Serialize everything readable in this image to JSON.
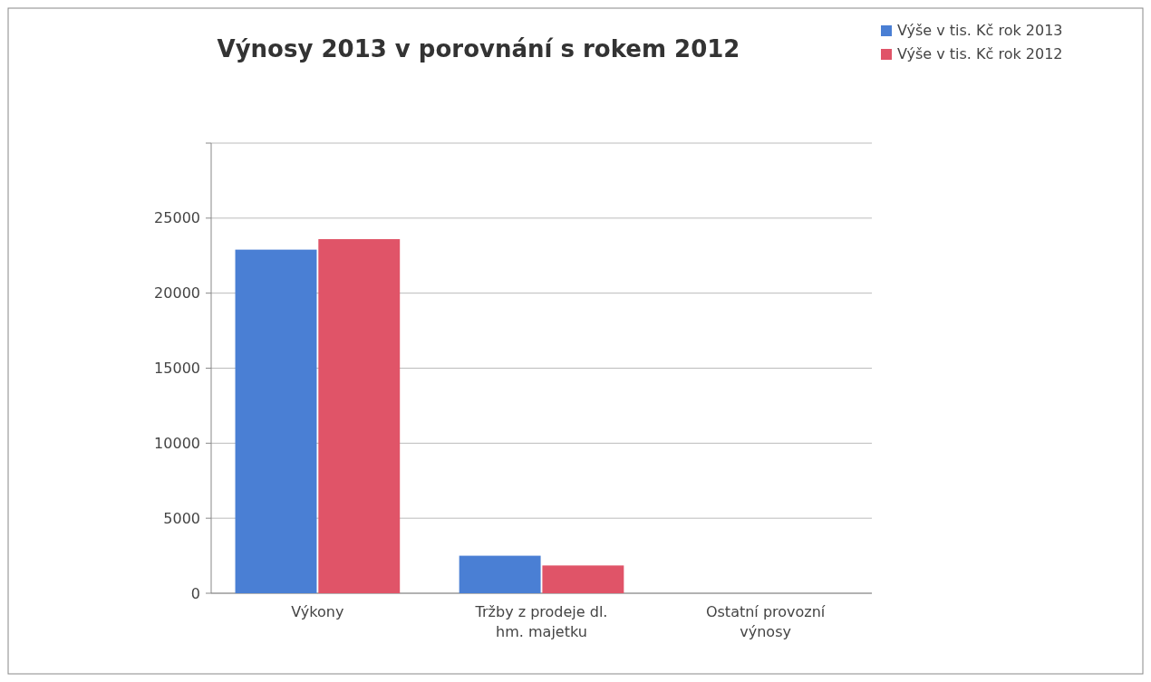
{
  "chart_data": {
    "type": "bar",
    "title": "Výnosy 2013 v porovnání s rokem 2012",
    "categories": [
      "Výkony",
      "Tržby z prodeje dl. hm. majetku",
      "Ostatní provozní výnosy"
    ],
    "series": [
      {
        "name": "Výše v tis. Kč rok 2013",
        "color": "#4a7fd4",
        "values": [
          22900,
          2500,
          0
        ]
      },
      {
        "name": "Výše v tis. Kč rok 2012",
        "color": "#e05468",
        "values": [
          23600,
          1850,
          0
        ]
      }
    ],
    "ylim": [
      0,
      30000
    ],
    "yticks": [
      0,
      5000,
      10000,
      15000,
      20000,
      25000,
      {
        "value": 30000,
        "label": null
      }
    ],
    "grid": "y",
    "legend": "top right"
  }
}
